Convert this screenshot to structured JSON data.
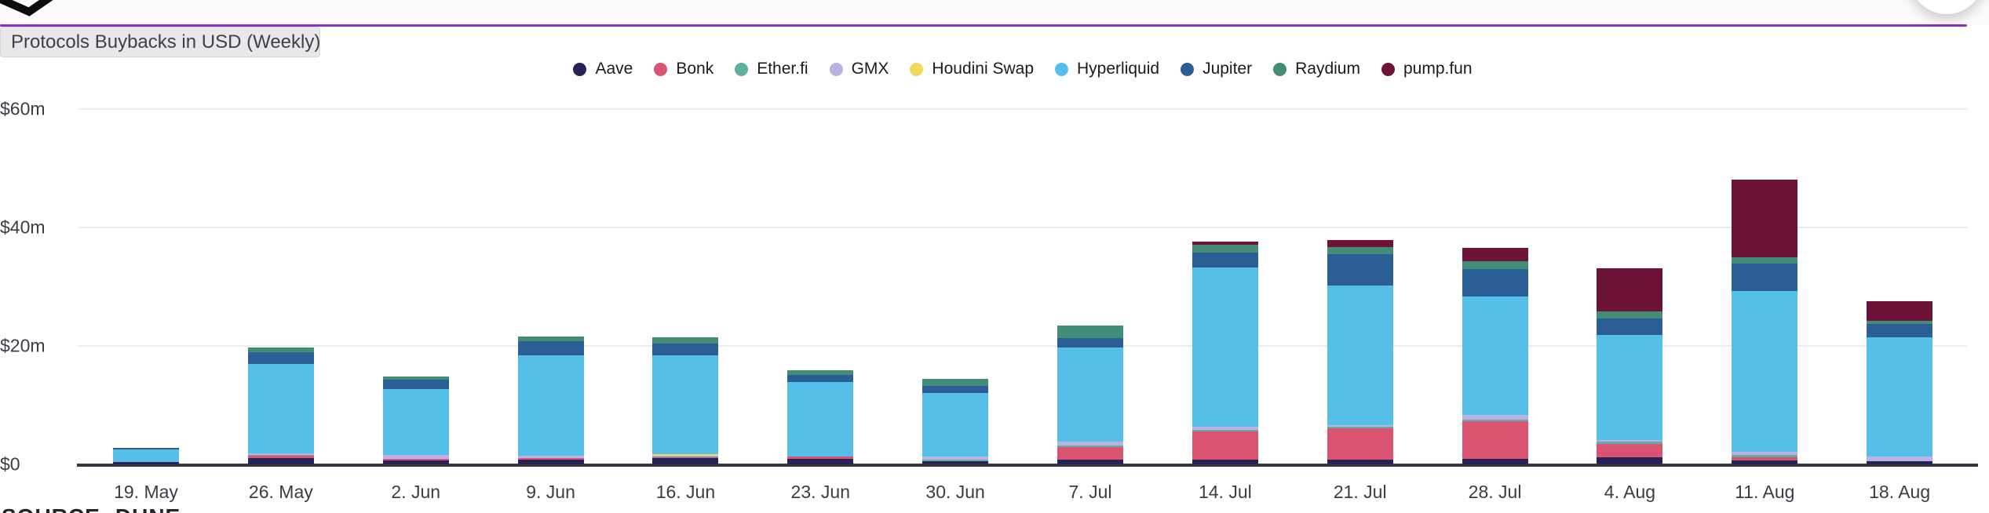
{
  "header": {
    "divider_color": "#8b2fc9",
    "title_tooltip": "Protocols Buybacks in USD (Weekly)"
  },
  "source_note": "SOURCE: DUNE",
  "chart_data": {
    "type": "bar",
    "stacked": true,
    "title": "Protocols Buybacks in USD (Weekly)",
    "unit": "USD millions",
    "grid": true,
    "legend_position": "top-center",
    "ylim": [
      0,
      60
    ],
    "y_ticks": [
      {
        "value": 60,
        "label": "$60m"
      },
      {
        "value": 40,
        "label": "$40m"
      },
      {
        "value": 20,
        "label": "$20m"
      },
      {
        "value": 0,
        "label": "$0"
      }
    ],
    "categories": [
      "19. May",
      "26. May",
      "2. Jun",
      "9. Jun",
      "16. Jun",
      "23. Jun",
      "30. Jun",
      "7. Jul",
      "14. Jul",
      "21. Jul",
      "28. Jul",
      "4. Aug",
      "11. Aug",
      "18. Aug"
    ],
    "series": [
      {
        "name": "Aave",
        "color": "#262255",
        "values": [
          0.4,
          1.05,
          0.6,
          0.8,
          1.05,
          0.9,
          0.55,
          0.75,
          0.75,
          0.75,
          0.9,
          1.2,
          0.7,
          0.55
        ]
      },
      {
        "name": "Bonk",
        "color": "#da5370",
        "values": [
          0,
          0.4,
          0.3,
          0.3,
          0.15,
          0.45,
          0,
          2.2,
          4.75,
          5.3,
          6.4,
          2.3,
          0.45,
          0
        ]
      },
      {
        "name": "Ether.fi",
        "color": "#5fae9f",
        "values": [
          0,
          0.2,
          0,
          0,
          0.1,
          0,
          0.3,
          0.25,
          0.35,
          0.35,
          0.3,
          0.3,
          0.45,
          0
        ]
      },
      {
        "name": "GMX",
        "color": "#b9b2e2",
        "values": [
          0,
          0.2,
          0.7,
          0.4,
          0.1,
          0,
          0.5,
          0.6,
          0.45,
          0.25,
          0.8,
          0.3,
          0.5,
          0.75
        ]
      },
      {
        "name": "Houdini Swap",
        "color": "#f0d95f",
        "values": [
          0,
          0,
          0,
          0,
          0.35,
          0,
          0,
          0,
          0,
          0,
          0,
          0,
          0,
          0
        ]
      },
      {
        "name": "Hyperliquid",
        "color": "#55bfea",
        "values": [
          2.1,
          15.1,
          11.1,
          16.9,
          16.6,
          12.6,
          10.7,
          15.9,
          26.9,
          23.5,
          20.0,
          17.7,
          27.2,
          20.1
        ]
      },
      {
        "name": "Jupiter",
        "color": "#2b5e94",
        "values": [
          0.3,
          2.0,
          1.55,
          2.4,
          2.1,
          1.2,
          1.2,
          1.6,
          2.6,
          5.3,
          4.6,
          2.9,
          4.6,
          2.25
        ]
      },
      {
        "name": "Raydium",
        "color": "#418d77",
        "values": [
          0,
          0.8,
          0.65,
          0.75,
          1.0,
          0.75,
          1.15,
          2.1,
          1.3,
          1.3,
          1.3,
          1.2,
          1.05,
          0.65
        ]
      },
      {
        "name": "pump.fun",
        "color": "#6d1337",
        "values": [
          0,
          0,
          0,
          0,
          0,
          0,
          0,
          0,
          0.5,
          1.2,
          2.2,
          7.2,
          13.2,
          3.3
        ]
      }
    ]
  }
}
